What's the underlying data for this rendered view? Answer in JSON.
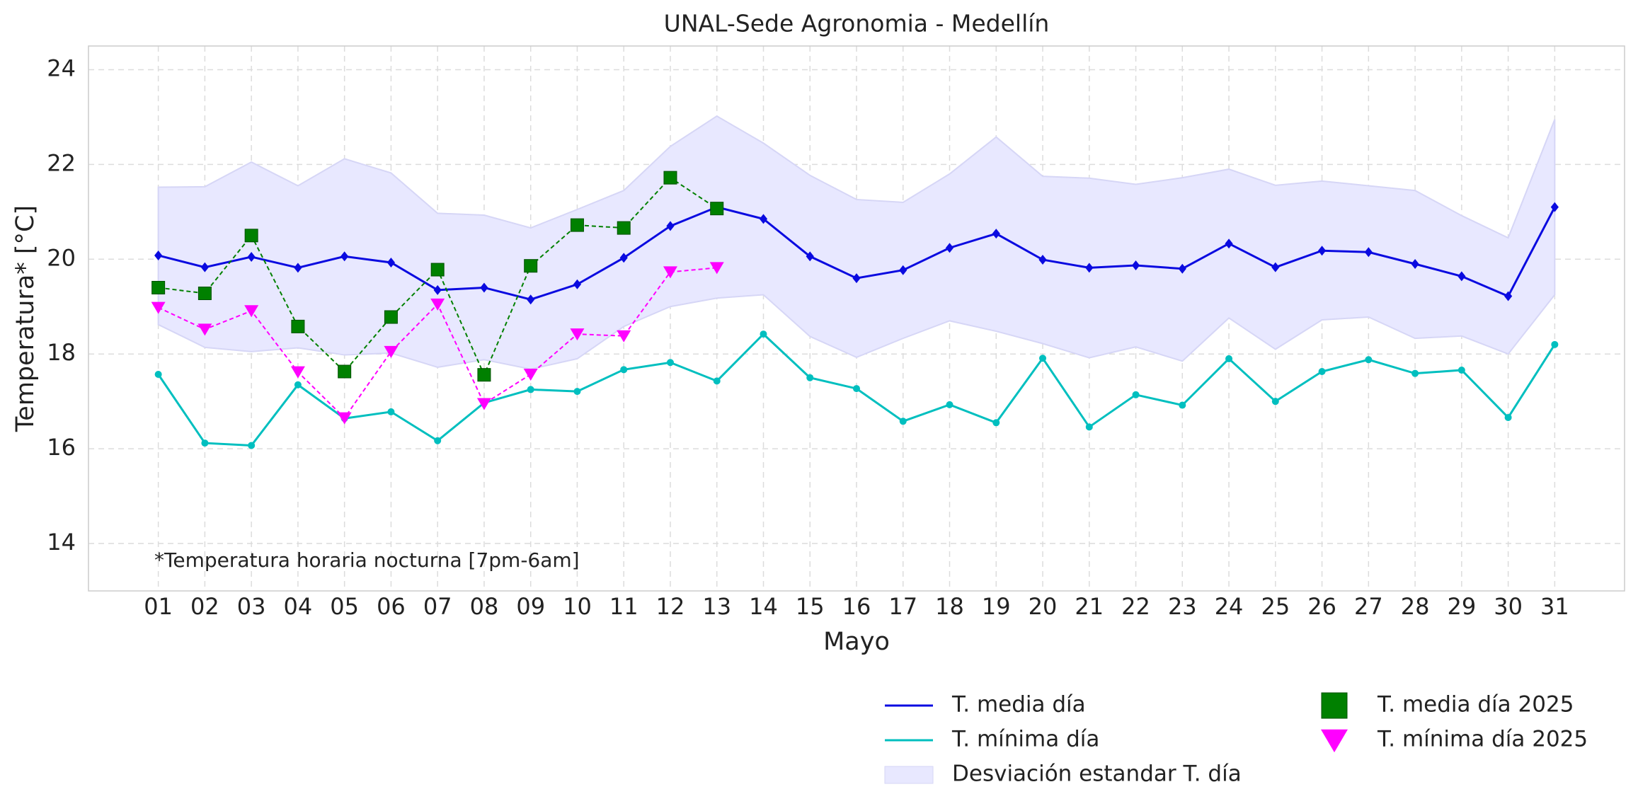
{
  "chart_data": {
    "type": "line",
    "title": "UNAL-Sede Agronomia - Medellín",
    "x_label": "Mayo",
    "y_label": "Temperatura* [°C]",
    "annotation": "*Temperatura horaria nocturna [7pm-6am]",
    "categories": [
      "01",
      "02",
      "03",
      "04",
      "05",
      "06",
      "07",
      "08",
      "09",
      "10",
      "11",
      "12",
      "13",
      "14",
      "15",
      "16",
      "17",
      "18",
      "19",
      "20",
      "21",
      "22",
      "23",
      "24",
      "25",
      "26",
      "27",
      "28",
      "29",
      "30",
      "31"
    ],
    "ylim": [
      13,
      24.5
    ],
    "yticks": [
      14,
      16,
      18,
      20,
      22,
      24
    ],
    "grid": true,
    "series": [
      {
        "name": "T. media día",
        "color": "#0a0ae0",
        "marker": "diamond",
        "line": "solid",
        "values": [
          20.08,
          19.83,
          20.05,
          19.82,
          20.06,
          19.93,
          19.35,
          19.4,
          19.15,
          19.47,
          20.03,
          20.7,
          21.1,
          20.85,
          20.06,
          19.6,
          19.77,
          20.24,
          20.54,
          19.99,
          19.82,
          19.87,
          19.8,
          20.33,
          19.83,
          20.18,
          20.15,
          19.9,
          19.64,
          19.22,
          21.1
        ]
      },
      {
        "name": "T. mínima día",
        "color": "#00bfbf",
        "marker": "circle",
        "line": "solid",
        "values": [
          17.57,
          16.12,
          16.07,
          17.35,
          16.64,
          16.78,
          16.17,
          16.97,
          17.25,
          17.21,
          17.67,
          17.82,
          17.43,
          18.42,
          17.5,
          17.27,
          16.58,
          16.93,
          16.55,
          17.91,
          16.46,
          17.14,
          16.92,
          17.9,
          17.0,
          17.63,
          17.88,
          17.59,
          17.66,
          16.66,
          18.2
        ]
      },
      {
        "name": "Desviación estandar T. día",
        "color": "#e8e8ff",
        "type": "band",
        "upper": [
          21.52,
          21.53,
          22.05,
          21.55,
          22.12,
          21.82,
          20.97,
          20.93,
          20.66,
          21.05,
          21.45,
          22.38,
          23.02,
          22.45,
          21.77,
          21.26,
          21.2,
          21.8,
          22.58,
          21.75,
          21.71,
          21.58,
          21.72,
          21.9,
          21.56,
          21.65,
          21.55,
          21.45,
          20.92,
          20.45,
          22.95
        ],
        "lower": [
          18.62,
          18.14,
          18.05,
          18.13,
          17.98,
          18.02,
          17.72,
          17.88,
          17.68,
          17.9,
          18.58,
          19.0,
          19.18,
          19.25,
          18.37,
          17.93,
          18.33,
          18.7,
          18.48,
          18.22,
          17.92,
          18.15,
          17.85,
          18.76,
          18.1,
          18.72,
          18.78,
          18.33,
          18.38,
          18.0,
          19.25
        ]
      },
      {
        "name": "T. media día 2025",
        "color": "#008000",
        "marker": "square",
        "line": "dashed",
        "values": [
          19.4,
          19.28,
          20.5,
          18.58,
          17.63,
          18.78,
          19.78,
          17.56,
          19.86,
          20.72,
          20.66,
          21.72,
          21.07,
          null,
          null,
          null,
          null,
          null,
          null,
          null,
          null,
          null,
          null,
          null,
          null,
          null,
          null,
          null,
          null,
          null,
          null
        ]
      },
      {
        "name": "T. mínima día 2025",
        "color": "#ff00ff",
        "marker": "triangle-down",
        "line": "dashed",
        "values": [
          18.98,
          18.52,
          18.91,
          17.62,
          16.65,
          18.05,
          19.05,
          16.95,
          17.57,
          18.42,
          18.38,
          19.73,
          19.82,
          null,
          null,
          null,
          null,
          null,
          null,
          null,
          null,
          null,
          null,
          null,
          null,
          null,
          null,
          null,
          null,
          null,
          null
        ]
      }
    ]
  }
}
